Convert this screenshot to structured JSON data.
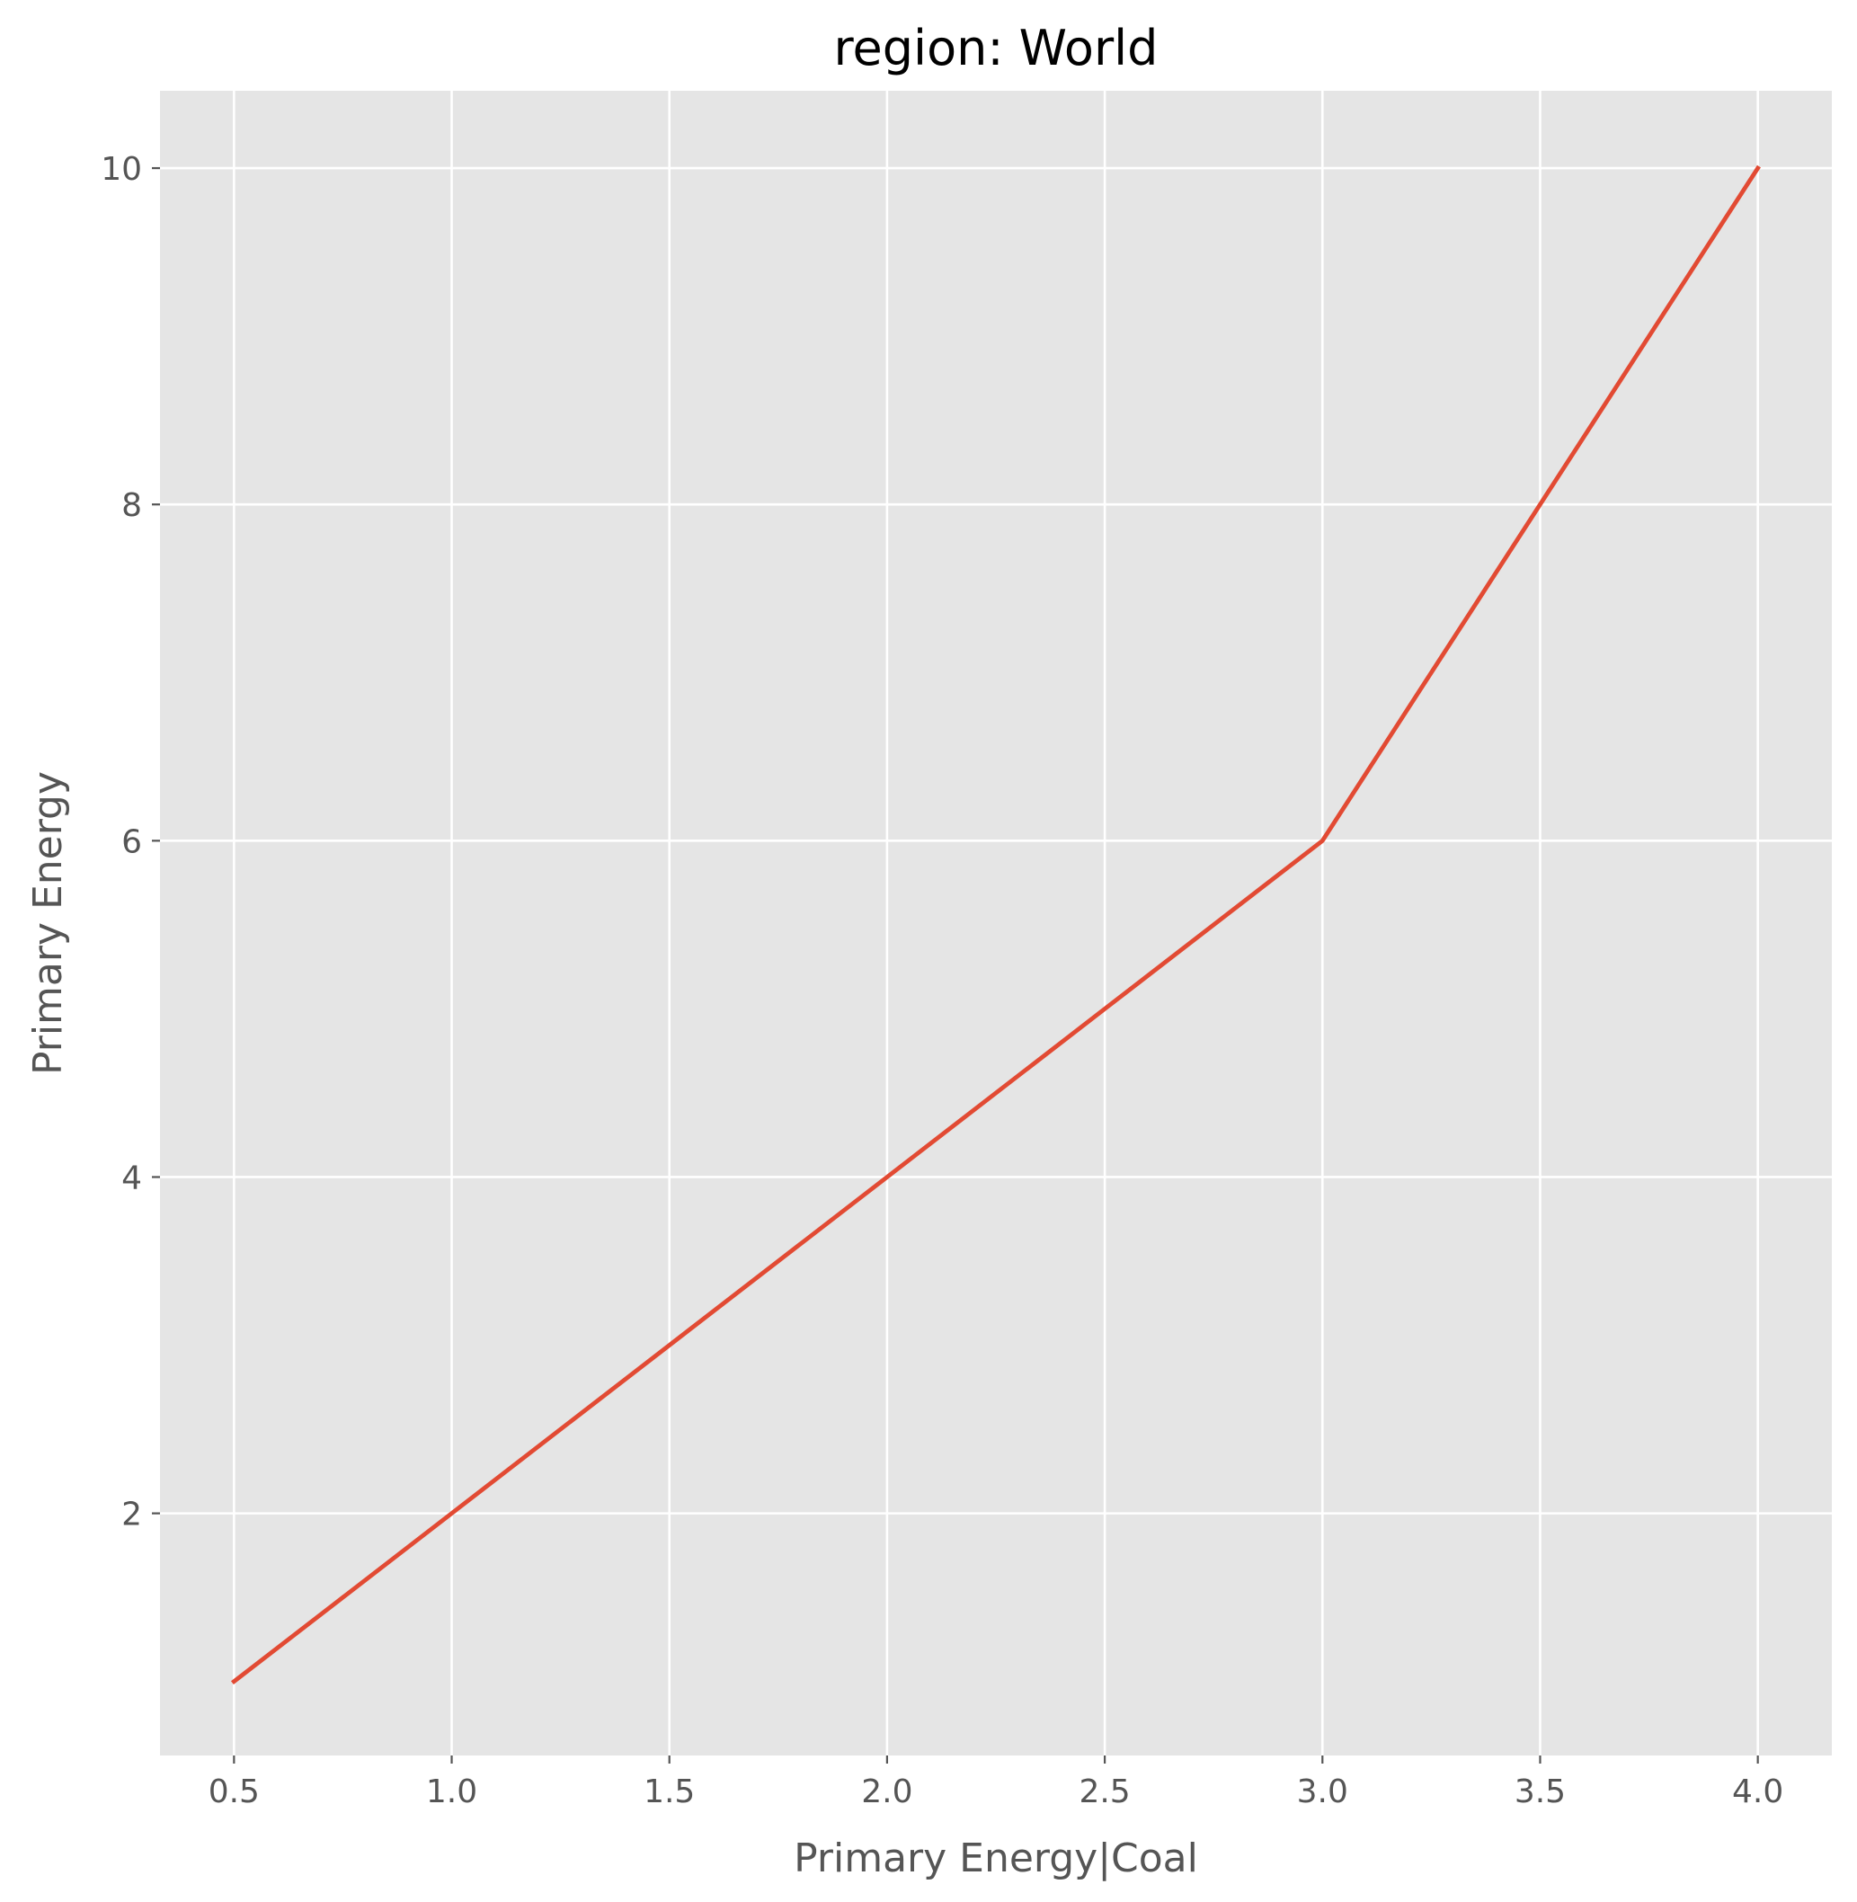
{
  "chart_data": {
    "type": "line",
    "title": "region: World",
    "xlabel": "Primary Energy|Coal",
    "ylabel": "Primary Energy",
    "xlim": [
      0.33,
      4.17
    ],
    "ylim": [
      0.56,
      10.46
    ],
    "xticks": [
      0.5,
      1.0,
      1.5,
      2.0,
      2.5,
      3.0,
      3.5,
      4.0
    ],
    "xtick_labels": [
      "0.5",
      "1.0",
      "1.5",
      "2.0",
      "2.5",
      "3.0",
      "3.5",
      "4.0"
    ],
    "yticks": [
      2,
      4,
      6,
      8,
      10
    ],
    "ytick_labels": [
      "2",
      "4",
      "6",
      "8",
      "10"
    ],
    "grid": true,
    "series": [
      {
        "color": "#e24a33",
        "x": [
          0.5,
          1.0,
          1.5,
          2.0,
          2.5,
          3.0,
          3.5,
          4.0
        ],
        "y": [
          1,
          2,
          3,
          4,
          5,
          6,
          8,
          10
        ]
      }
    ],
    "colors": {
      "plot_background": "#e5e5e5",
      "grid": "#ffffff",
      "line": "#e24a33"
    }
  }
}
